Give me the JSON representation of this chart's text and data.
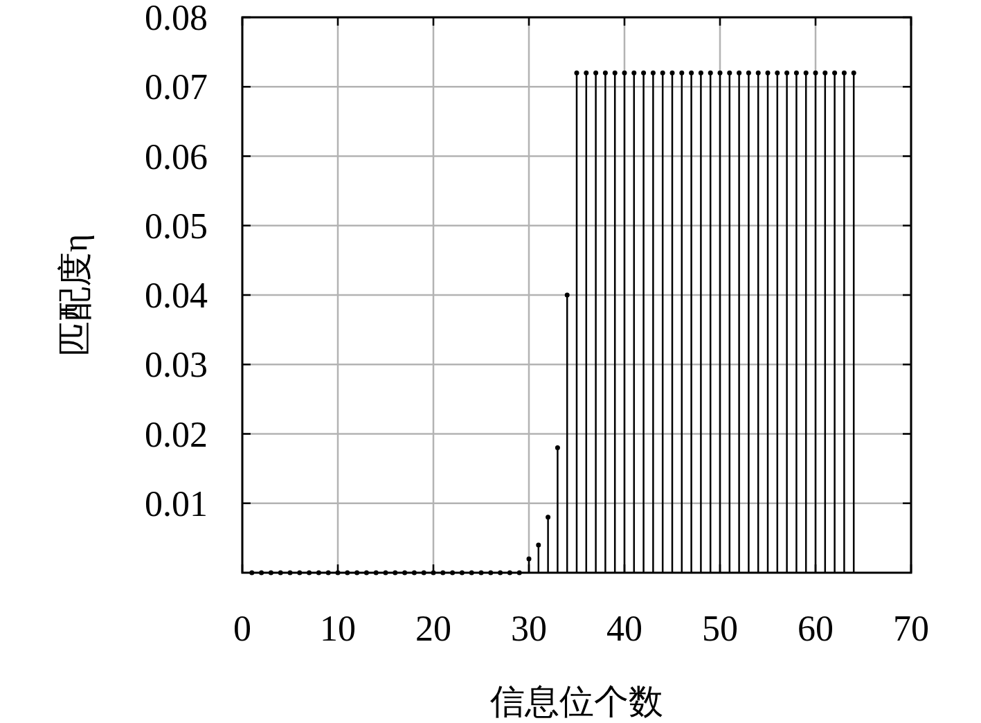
{
  "chart_data": {
    "type": "lollipop",
    "xlabel": "信息位个数",
    "ylabel": "匹配度η",
    "color": "#000000",
    "marker": "circle",
    "grid": true,
    "x": [
      1,
      2,
      3,
      4,
      5,
      6,
      7,
      8,
      9,
      10,
      11,
      12,
      13,
      14,
      15,
      16,
      17,
      18,
      19,
      20,
      21,
      22,
      23,
      24,
      25,
      26,
      27,
      28,
      29,
      30,
      31,
      32,
      33,
      34,
      35,
      36,
      37,
      38,
      39,
      40,
      41,
      42,
      43,
      44,
      45,
      46,
      47,
      48,
      49,
      50,
      51,
      52,
      53,
      54,
      55,
      56,
      57,
      58,
      59,
      60,
      61,
      62,
      63,
      64
    ],
    "values": [
      0,
      0,
      0,
      0,
      0,
      0,
      0,
      0,
      0,
      0,
      0,
      0,
      0,
      0,
      0,
      0,
      0,
      0,
      0,
      0,
      0,
      0,
      0,
      0,
      0,
      0,
      0,
      0,
      0,
      0.002,
      0.004,
      0.008,
      0.018,
      0.04,
      0.072,
      0.072,
      0.072,
      0.072,
      0.072,
      0.072,
      0.072,
      0.072,
      0.072,
      0.072,
      0.072,
      0.072,
      0.072,
      0.072,
      0.072,
      0.072,
      0.072,
      0.072,
      0.072,
      0.072,
      0.072,
      0.072,
      0.072,
      0.072,
      0.072,
      0.072,
      0.072,
      0.072,
      0.072,
      0.072
    ],
    "xlim": [
      0,
      70
    ],
    "xticks": [
      0,
      10,
      20,
      30,
      40,
      50,
      60,
      70
    ],
    "ylim": [
      0,
      0.08
    ],
    "yticks": [
      0.01,
      0.02,
      0.03,
      0.04,
      0.05,
      0.06,
      0.07,
      0.08
    ]
  }
}
